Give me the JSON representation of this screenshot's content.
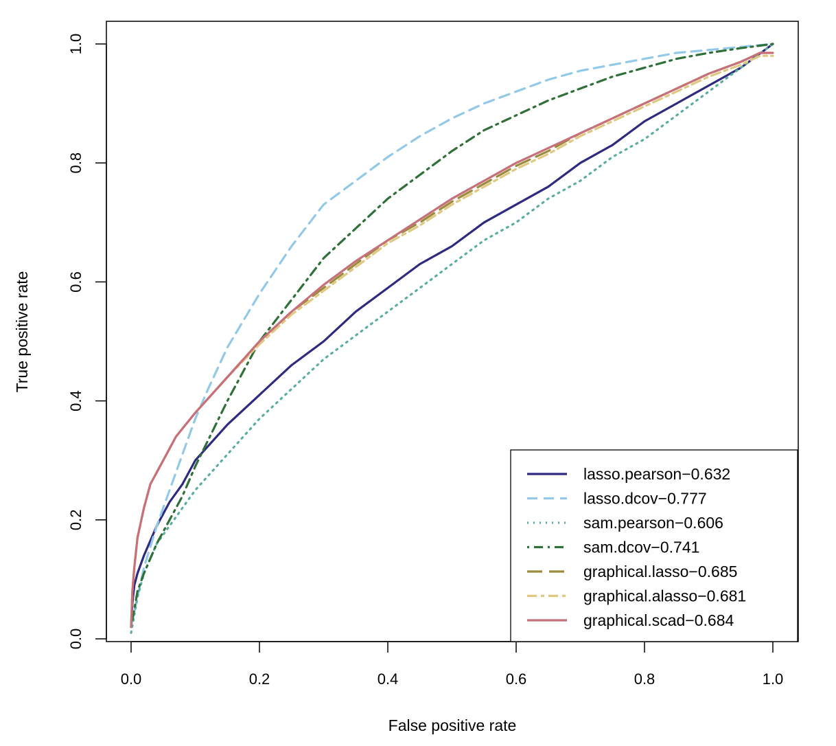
{
  "chart_data": {
    "type": "line",
    "title": "",
    "xlabel": "False positive rate",
    "ylabel": "True positive rate",
    "xlim": [
      0.0,
      1.0
    ],
    "ylim": [
      0.0,
      1.0
    ],
    "x_ticks": [
      "0.0",
      "0.2",
      "0.4",
      "0.6",
      "0.8",
      "1.0"
    ],
    "y_ticks": [
      "0.0",
      "0.2",
      "0.4",
      "0.6",
      "0.8",
      "1.0"
    ],
    "grid": false,
    "legend_position": "bottom-right",
    "series": [
      {
        "name": "lasso.pearson−0.632",
        "color": "#2e2a80",
        "dash": "solid",
        "x": [
          0,
          0.002,
          0.005,
          0.01,
          0.02,
          0.04,
          0.06,
          0.08,
          0.1,
          0.15,
          0.2,
          0.25,
          0.3,
          0.35,
          0.4,
          0.45,
          0.5,
          0.55,
          0.6,
          0.65,
          0.7,
          0.75,
          0.8,
          0.85,
          0.9,
          0.95,
          1.0
        ],
        "y": [
          0.02,
          0.06,
          0.09,
          0.11,
          0.14,
          0.19,
          0.23,
          0.26,
          0.3,
          0.36,
          0.41,
          0.46,
          0.5,
          0.55,
          0.59,
          0.63,
          0.66,
          0.7,
          0.73,
          0.76,
          0.8,
          0.83,
          0.87,
          0.9,
          0.93,
          0.96,
          1.0
        ]
      },
      {
        "name": "lasso.dcov−0.777",
        "color": "#93c9e8",
        "dash": "dashed",
        "x": [
          0,
          0.01,
          0.02,
          0.04,
          0.06,
          0.08,
          0.1,
          0.12,
          0.15,
          0.2,
          0.25,
          0.3,
          0.35,
          0.4,
          0.45,
          0.5,
          0.55,
          0.6,
          0.65,
          0.7,
          0.75,
          0.8,
          0.85,
          0.9,
          0.95,
          1.0
        ],
        "y": [
          0.02,
          0.07,
          0.12,
          0.19,
          0.25,
          0.31,
          0.37,
          0.42,
          0.49,
          0.58,
          0.66,
          0.73,
          0.77,
          0.81,
          0.845,
          0.875,
          0.9,
          0.92,
          0.94,
          0.955,
          0.965,
          0.975,
          0.985,
          0.99,
          0.995,
          1.0
        ]
      },
      {
        "name": "sam.pearson−0.606",
        "color": "#5aaea0",
        "dash": "dotted",
        "x": [
          0,
          0.005,
          0.01,
          0.02,
          0.04,
          0.06,
          0.08,
          0.1,
          0.15,
          0.2,
          0.25,
          0.3,
          0.35,
          0.4,
          0.45,
          0.5,
          0.55,
          0.6,
          0.65,
          0.7,
          0.75,
          0.8,
          0.85,
          0.9,
          0.95,
          1.0
        ],
        "y": [
          0.01,
          0.04,
          0.07,
          0.11,
          0.16,
          0.19,
          0.22,
          0.25,
          0.31,
          0.37,
          0.42,
          0.47,
          0.51,
          0.55,
          0.59,
          0.63,
          0.67,
          0.7,
          0.74,
          0.77,
          0.81,
          0.84,
          0.88,
          0.92,
          0.96,
          1.0
        ]
      },
      {
        "name": "sam.dcov−0.741",
        "color": "#2e7038",
        "dash": "dotdash",
        "x": [
          0,
          0.005,
          0.01,
          0.02,
          0.04,
          0.06,
          0.08,
          0.1,
          0.15,
          0.2,
          0.25,
          0.3,
          0.35,
          0.4,
          0.45,
          0.5,
          0.55,
          0.6,
          0.65,
          0.7,
          0.75,
          0.8,
          0.85,
          0.9,
          0.95,
          1.0
        ],
        "y": [
          0.02,
          0.05,
          0.08,
          0.11,
          0.16,
          0.2,
          0.24,
          0.29,
          0.4,
          0.5,
          0.57,
          0.64,
          0.69,
          0.74,
          0.78,
          0.82,
          0.855,
          0.88,
          0.905,
          0.925,
          0.945,
          0.96,
          0.975,
          0.985,
          0.993,
          1.0
        ]
      },
      {
        "name": "graphical.lasso−0.685",
        "color": "#9a8c3c",
        "dash": "longdash",
        "x": [
          0,
          0.002,
          0.005,
          0.01,
          0.02,
          0.03,
          0.05,
          0.07,
          0.1,
          0.15,
          0.2,
          0.25,
          0.3,
          0.35,
          0.4,
          0.45,
          0.5,
          0.55,
          0.6,
          0.65,
          0.7,
          0.75,
          0.8,
          0.85,
          0.9,
          0.95,
          0.98,
          1.0
        ],
        "y": [
          0.02,
          0.08,
          0.12,
          0.17,
          0.22,
          0.26,
          0.3,
          0.34,
          0.38,
          0.44,
          0.5,
          0.55,
          0.59,
          0.63,
          0.67,
          0.7,
          0.735,
          0.765,
          0.795,
          0.82,
          0.85,
          0.875,
          0.9,
          0.925,
          0.95,
          0.97,
          0.985,
          0.985
        ]
      },
      {
        "name": "graphical.alasso−0.681",
        "color": "#e0c880",
        "dash": "twodash",
        "x": [
          0,
          0.002,
          0.005,
          0.01,
          0.02,
          0.03,
          0.05,
          0.07,
          0.1,
          0.15,
          0.2,
          0.25,
          0.3,
          0.35,
          0.4,
          0.45,
          0.5,
          0.55,
          0.6,
          0.65,
          0.7,
          0.75,
          0.8,
          0.85,
          0.9,
          0.95,
          0.98,
          1.0
        ],
        "y": [
          0.02,
          0.08,
          0.12,
          0.17,
          0.22,
          0.26,
          0.3,
          0.34,
          0.38,
          0.44,
          0.495,
          0.545,
          0.585,
          0.625,
          0.665,
          0.695,
          0.73,
          0.76,
          0.79,
          0.815,
          0.845,
          0.87,
          0.895,
          0.92,
          0.945,
          0.965,
          0.98,
          0.98
        ]
      },
      {
        "name": "graphical.scad−0.684",
        "color": "#c8707a",
        "dash": "solid",
        "x": [
          0,
          0.002,
          0.005,
          0.01,
          0.02,
          0.03,
          0.05,
          0.07,
          0.1,
          0.15,
          0.2,
          0.25,
          0.3,
          0.35,
          0.4,
          0.45,
          0.5,
          0.55,
          0.6,
          0.65,
          0.7,
          0.75,
          0.8,
          0.85,
          0.9,
          0.95,
          0.98,
          1.0
        ],
        "y": [
          0.02,
          0.08,
          0.12,
          0.17,
          0.22,
          0.26,
          0.3,
          0.34,
          0.38,
          0.44,
          0.5,
          0.55,
          0.595,
          0.635,
          0.67,
          0.705,
          0.74,
          0.77,
          0.8,
          0.825,
          0.85,
          0.875,
          0.9,
          0.925,
          0.95,
          0.97,
          0.985,
          0.985
        ]
      }
    ]
  }
}
